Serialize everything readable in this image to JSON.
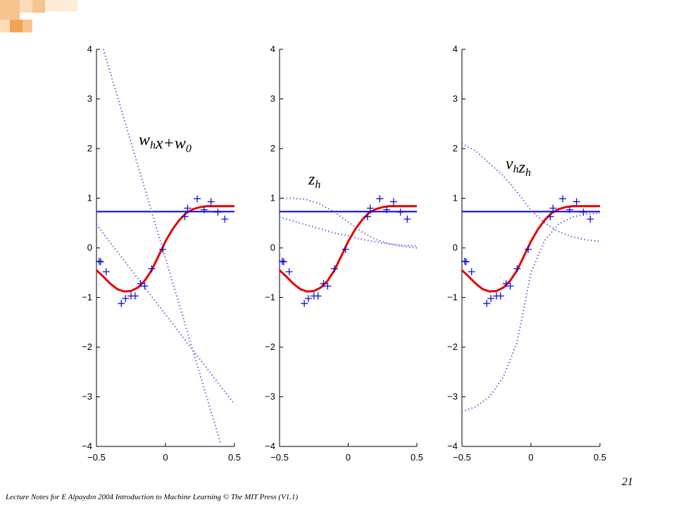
{
  "deco": {
    "colors": [
      "#f7c48f",
      "#fbdcb8",
      "#f2a356"
    ]
  },
  "footer": "Lecture Notes for E Alpaydın 2004 Introduction to Machine Learning © The MIT Press (V1.1)",
  "page_number": "21",
  "chart_data": [
    {
      "type": "line",
      "annotation": {
        "base": "w",
        "sub": "h",
        "mid": "x+w",
        "sub2": "0"
      },
      "xlim": [
        -0.5,
        0.5
      ],
      "ylim": [
        -4,
        4
      ],
      "xticks": [
        "−0.5",
        "0",
        "0.5"
      ],
      "yticks": [
        "−4",
        "−3",
        "−2",
        "−1",
        "0",
        "1",
        "2",
        "3",
        "4"
      ],
      "data_points": {
        "x": [
          -0.48,
          -0.47,
          -0.43,
          -0.32,
          -0.29,
          -0.25,
          -0.22,
          -0.18,
          -0.15,
          -0.1,
          -0.02,
          0.14,
          0.16,
          0.23,
          0.28,
          0.33,
          0.38,
          0.43
        ],
        "y": [
          -0.27,
          -0.28,
          -0.48,
          -1.12,
          -1.02,
          -0.97,
          -0.97,
          -0.72,
          -0.77,
          -0.42,
          -0.03,
          0.63,
          0.8,
          0.99,
          0.77,
          0.93,
          0.72,
          0.58
        ]
      },
      "series": [
        {
          "color": "#e60000",
          "style": "solid",
          "x": [
            -0.5,
            -0.45,
            -0.4,
            -0.35,
            -0.3,
            -0.25,
            -0.2,
            -0.15,
            -0.1,
            -0.05,
            0,
            0.05,
            0.1,
            0.15,
            0.2,
            0.25,
            0.3,
            0.35,
            0.4,
            0.5
          ],
          "y": [
            -0.45,
            -0.58,
            -0.72,
            -0.83,
            -0.88,
            -0.87,
            -0.8,
            -0.66,
            -0.45,
            -0.16,
            0.13,
            0.37,
            0.56,
            0.7,
            0.78,
            0.82,
            0.84,
            0.84,
            0.84,
            0.84
          ]
        },
        {
          "color": "#0000dd",
          "style": "solid",
          "x": [
            -0.5,
            0.5
          ],
          "y": [
            0.73,
            0.73
          ]
        },
        {
          "color": "#4f4fe0",
          "style": "dotted",
          "x": [
            -0.45,
            0.4
          ],
          "y": [
            4.0,
            -3.95
          ]
        },
        {
          "color": "#4f4fe0",
          "style": "dotted",
          "x": [
            -0.5,
            0.5
          ],
          "y": [
            0.47,
            -3.15
          ]
        }
      ]
    },
    {
      "type": "line",
      "annotation": {
        "base": "z",
        "sub": "h"
      },
      "xlim": [
        -0.5,
        0.5
      ],
      "ylim": [
        -4,
        4
      ],
      "xticks": [
        "−0.5",
        "0",
        "0.5"
      ],
      "yticks": [
        "−4",
        "−3",
        "−2",
        "−1",
        "0",
        "1",
        "2",
        "3",
        "4"
      ],
      "data_points": {
        "x": [
          -0.48,
          -0.47,
          -0.43,
          -0.32,
          -0.29,
          -0.25,
          -0.22,
          -0.18,
          -0.15,
          -0.1,
          -0.02,
          0.14,
          0.16,
          0.23,
          0.28,
          0.33,
          0.38,
          0.43
        ],
        "y": [
          -0.27,
          -0.28,
          -0.48,
          -1.12,
          -1.02,
          -0.97,
          -0.97,
          -0.72,
          -0.77,
          -0.42,
          -0.03,
          0.63,
          0.8,
          0.99,
          0.77,
          0.93,
          0.72,
          0.58
        ]
      },
      "series": [
        {
          "color": "#e60000",
          "style": "solid",
          "x": [
            -0.5,
            -0.45,
            -0.4,
            -0.35,
            -0.3,
            -0.25,
            -0.2,
            -0.15,
            -0.1,
            -0.05,
            0,
            0.05,
            0.1,
            0.15,
            0.2,
            0.25,
            0.3,
            0.35,
            0.4,
            0.5
          ],
          "y": [
            -0.45,
            -0.58,
            -0.72,
            -0.83,
            -0.88,
            -0.87,
            -0.8,
            -0.66,
            -0.45,
            -0.16,
            0.13,
            0.37,
            0.56,
            0.7,
            0.78,
            0.82,
            0.84,
            0.84,
            0.84,
            0.84
          ]
        },
        {
          "color": "#0000dd",
          "style": "solid",
          "x": [
            -0.5,
            0.5
          ],
          "y": [
            0.73,
            0.73
          ]
        },
        {
          "color": "#4f4fe0",
          "style": "dotted",
          "x": [
            -0.5,
            -0.4,
            -0.3,
            -0.2,
            -0.1,
            0,
            0.1,
            0.2,
            0.3,
            0.4,
            0.5
          ],
          "y": [
            1.0,
            1.0,
            0.97,
            0.88,
            0.72,
            0.52,
            0.32,
            0.17,
            0.08,
            0.03,
            0.0
          ]
        },
        {
          "color": "#4f4fe0",
          "style": "dotted",
          "x": [
            -0.5,
            -0.4,
            -0.3,
            -0.2,
            -0.1,
            0,
            0.1,
            0.2,
            0.3,
            0.4,
            0.5
          ],
          "y": [
            0.62,
            0.54,
            0.46,
            0.38,
            0.3,
            0.24,
            0.17,
            0.12,
            0.08,
            0.05,
            0.04
          ]
        }
      ]
    },
    {
      "type": "line",
      "annotation": {
        "base": "v",
        "sub": "h",
        "mid": "z",
        "sub2": "h"
      },
      "xlim": [
        -0.5,
        0.5
      ],
      "ylim": [
        -4,
        4
      ],
      "xticks": [
        "−0.5",
        "0",
        "0.5"
      ],
      "yticks": [
        "−4",
        "−3",
        "−2",
        "−1",
        "0",
        "1",
        "2",
        "3",
        "4"
      ],
      "data_points": {
        "x": [
          -0.48,
          -0.47,
          -0.43,
          -0.32,
          -0.29,
          -0.25,
          -0.22,
          -0.18,
          -0.15,
          -0.1,
          -0.02,
          0.14,
          0.16,
          0.23,
          0.28,
          0.33,
          0.38,
          0.43
        ],
        "y": [
          -0.27,
          -0.28,
          -0.48,
          -1.12,
          -1.02,
          -0.97,
          -0.97,
          -0.72,
          -0.77,
          -0.42,
          -0.03,
          0.63,
          0.8,
          0.99,
          0.77,
          0.93,
          0.72,
          0.58
        ]
      },
      "series": [
        {
          "color": "#e60000",
          "style": "solid",
          "x": [
            -0.5,
            -0.45,
            -0.4,
            -0.35,
            -0.3,
            -0.25,
            -0.2,
            -0.15,
            -0.1,
            -0.05,
            0,
            0.05,
            0.1,
            0.15,
            0.2,
            0.25,
            0.3,
            0.35,
            0.4,
            0.5
          ],
          "y": [
            -0.45,
            -0.58,
            -0.72,
            -0.83,
            -0.88,
            -0.87,
            -0.8,
            -0.66,
            -0.45,
            -0.16,
            0.13,
            0.37,
            0.56,
            0.7,
            0.78,
            0.82,
            0.84,
            0.84,
            0.84,
            0.84
          ]
        },
        {
          "color": "#0000dd",
          "style": "solid",
          "x": [
            -0.5,
            0.5
          ],
          "y": [
            0.73,
            0.73
          ]
        },
        {
          "color": "#4f4fe0",
          "style": "dotted",
          "x": [
            -0.5,
            -0.4,
            -0.3,
            -0.2,
            -0.1,
            0,
            0.1,
            0.2,
            0.3,
            0.4,
            0.5
          ],
          "y": [
            2.1,
            1.95,
            1.7,
            1.45,
            1.12,
            0.76,
            0.5,
            0.33,
            0.22,
            0.16,
            0.13
          ]
        },
        {
          "color": "#4f4fe0",
          "style": "dotted",
          "x": [
            -0.5,
            -0.4,
            -0.3,
            -0.2,
            -0.1,
            0,
            0.1,
            0.2,
            0.3,
            0.4,
            0.5
          ],
          "y": [
            -3.3,
            -3.2,
            -3.0,
            -2.6,
            -1.9,
            -0.5,
            0.15,
            0.48,
            0.62,
            0.68,
            0.7
          ]
        }
      ]
    }
  ]
}
